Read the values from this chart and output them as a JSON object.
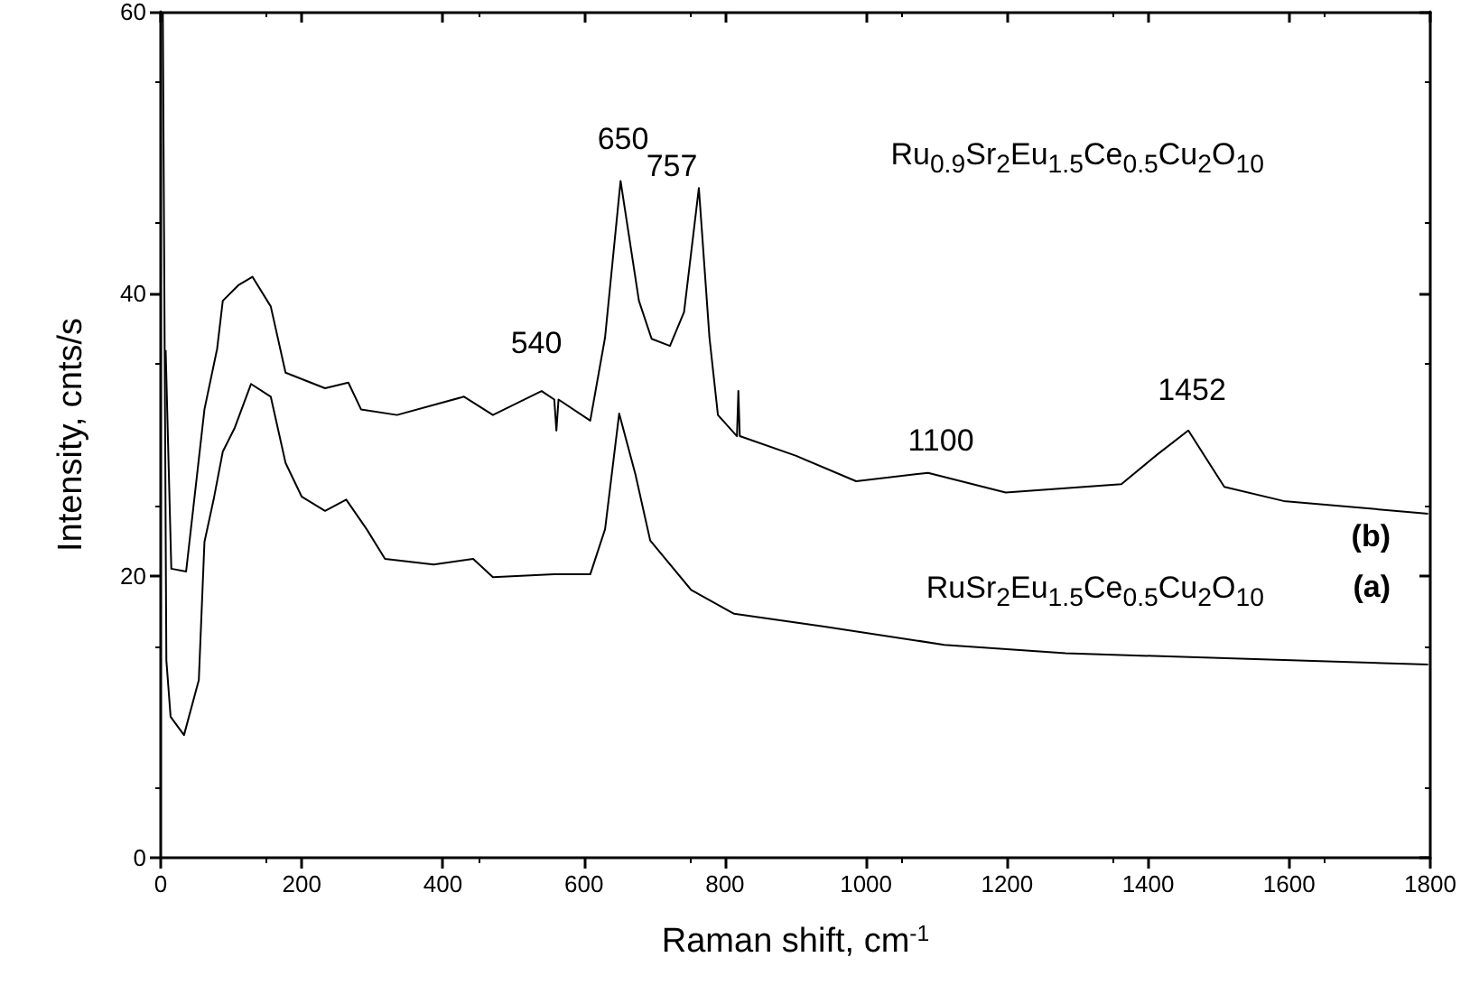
{
  "chart_data": {
    "type": "line",
    "xlabel": "Raman shift, cm$^{-1}$",
    "ylabel": "Intensity, cnts/s",
    "xlim": [
      0,
      1800
    ],
    "xticks": [
      0,
      200,
      400,
      600,
      800,
      1000,
      1200,
      1400,
      1600,
      1800
    ],
    "ylim": [
      0,
      60
    ],
    "yticks": [
      0,
      20,
      40,
      60
    ],
    "series": [
      {
        "name": "Ru$_{0.9}$Sr$_{2}$Eu$_{1.5}$Ce$_{0.5}$Cu$_{2}$O$_{10}$",
        "color": "#000000",
        "x": [
          7,
          15,
          36,
          62,
          80,
          88,
          110,
          130,
          156,
          177,
          233,
          266,
          284,
          335,
          430,
          471,
          540,
          558,
          561,
          564,
          609,
          630,
          652,
          678,
          696,
          722,
          742,
          763,
          778,
          790,
          817,
          819,
          821,
          901,
          986,
          1088,
          1198,
          1362,
          1413,
          1457,
          1508,
          1592,
          1797
        ],
        "values": [
          36,
          20.5,
          20.3,
          31.8,
          36.1,
          39.5,
          40.6,
          41.2,
          39.1,
          34.4,
          33.3,
          33.7,
          31.8,
          31.4,
          32.7,
          31.4,
          33.1,
          32.5,
          30.3,
          32.5,
          31.0,
          36.9,
          48,
          39.5,
          36.8,
          36.3,
          38.7,
          47.5,
          36.9,
          31.4,
          29.9,
          33.1,
          29.9,
          28.5,
          26.7,
          27.3,
          25.9,
          26.5,
          28.6,
          30.3,
          26.3,
          25.3,
          24.4
        ]
      },
      {
        "name": "RuSr$_{2}$Eu$_{1.5}$Ce$_{0.5}$Cu$_{2}$O$_{10}$",
        "color": "#000000",
        "x": [
          3,
          8,
          14,
          33,
          54,
          62,
          75,
          88,
          105,
          128,
          156,
          177,
          200,
          233,
          263,
          292,
          318,
          387,
          443,
          471,
          558,
          609,
          630,
          650,
          673,
          694,
          752,
          813,
          941,
          1111,
          1283,
          1797
        ],
        "values": [
          60,
          14,
          10,
          8.7,
          12.6,
          22.4,
          25.4,
          28.8,
          30.5,
          33.6,
          32.7,
          28,
          25.6,
          24.6,
          25.4,
          23.3,
          21.2,
          20.8,
          21.2,
          19.9,
          20.1,
          20.1,
          23.3,
          31.5,
          27.2,
          22.5,
          19,
          17.3,
          16.4,
          15.1,
          14.5,
          13.7
        ]
      }
    ],
    "annotations": [
      "650",
      "757",
      "540",
      "1100",
      "1452",
      "(b)",
      "(a)"
    ]
  }
}
